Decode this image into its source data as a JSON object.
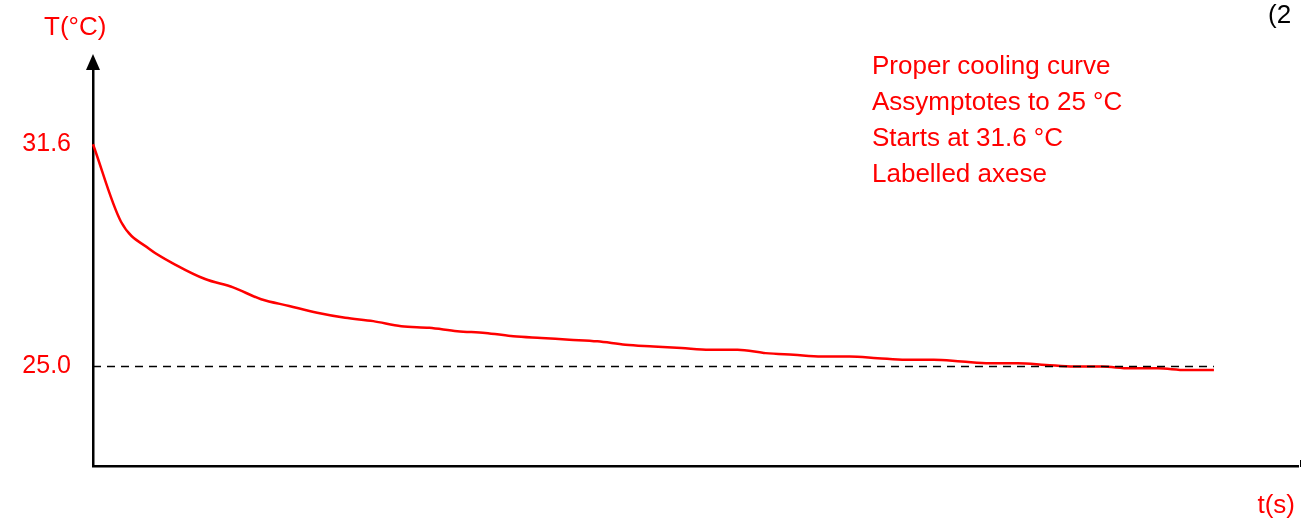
{
  "chart_data": {
    "type": "line",
    "xlabel": "t(s)",
    "ylabel": "T(°C)",
    "categories": [
      null,
      null,
      null,
      null,
      null,
      null,
      null,
      null,
      null,
      null,
      null,
      null,
      null,
      null,
      null,
      null,
      null,
      null,
      null,
      null,
      null,
      null,
      null,
      null,
      null,
      null,
      null,
      null,
      null,
      null,
      null,
      null,
      null,
      null,
      null,
      null,
      null,
      null,
      null,
      null,
      null,
      null,
      null,
      null
    ],
    "series": [
      {
        "color": "#ff0000",
        "values": [
          31.6,
          29.3,
          28.5,
          28.0,
          27.6,
          27.35,
          27.0,
          26.8,
          26.6,
          26.45,
          26.35,
          26.2,
          26.15,
          26.05,
          26.0,
          25.9,
          25.85,
          25.8,
          25.75,
          25.65,
          25.6,
          25.55,
          25.5,
          25.5,
          25.4,
          25.35,
          25.3,
          25.3,
          25.25,
          25.2,
          25.2,
          25.15,
          25.1,
          25.1,
          25.05,
          25.0,
          25.0,
          24.95,
          24.95,
          24.9,
          24.9,
          null,
          null,
          null
        ]
      }
    ],
    "ylim": [
      22.05,
      34.1
    ],
    "yticks": [
      31.6,
      {
        "value": 25,
        "label": "25.0"
      }
    ],
    "ref_lines": [
      {
        "axis": "y",
        "value": 25,
        "color": "#000000",
        "line_style": "dashed"
      }
    ],
    "annotations": [
      "Proper cooling curve\nAssymptotes to 25 °C\nStarts at 31.6 °C\nLabelled axese",
      "(2"
    ],
    "tick_labels": "y",
    "grid": false,
    "legend": false,
    "marker": "none",
    "line_style": "solid"
  }
}
